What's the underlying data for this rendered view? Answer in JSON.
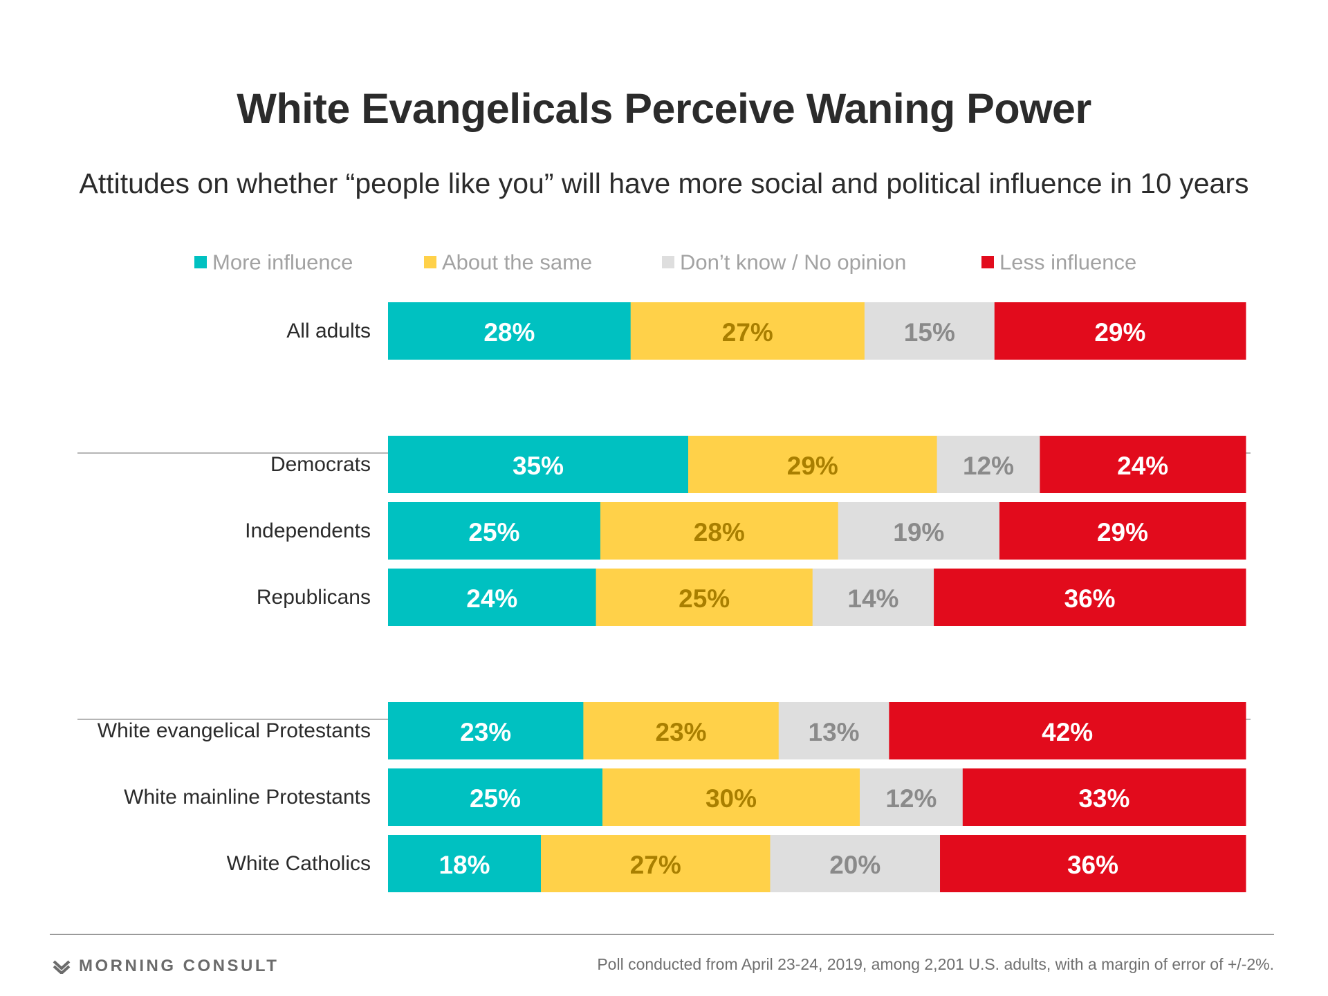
{
  "chart_data": {
    "type": "bar",
    "orientation": "horizontal",
    "stacked": true,
    "title": "White Evangelicals Perceive Waning Power",
    "subtitle": "Attitudes on whether “people like you” will have more social and political influence in 10 years",
    "legend_position": "top",
    "series": [
      {
        "name": "More influence",
        "color": "#00c1c1",
        "label_color": "#ffffff"
      },
      {
        "name": "About the same",
        "color": "#ffd149",
        "label_color": "#a97f00"
      },
      {
        "name": "Don’t know / No opinion",
        "color": "#dedede",
        "label_color": "#8a8a8a"
      },
      {
        "name": "Less influence",
        "color": "#e20b1c",
        "label_color": "#ffffff"
      }
    ],
    "groups": [
      [
        {
          "category": "All adults",
          "values": [
            28,
            27,
            15,
            29
          ],
          "labels": [
            "28%",
            "27%",
            "15%",
            "29%"
          ]
        }
      ],
      [
        {
          "category": "Democrats",
          "values": [
            35,
            29,
            12,
            24
          ],
          "labels": [
            "35%",
            "29%",
            "12%",
            "24%"
          ]
        },
        {
          "category": "Independents",
          "values": [
            25,
            28,
            19,
            29
          ],
          "labels": [
            "25%",
            "28%",
            "19%",
            "29%"
          ]
        },
        {
          "category": "Republicans",
          "values": [
            24,
            25,
            14,
            36
          ],
          "labels": [
            "24%",
            "25%",
            "14%",
            "36%"
          ]
        }
      ],
      [
        {
          "category": "White evangelical Protestants",
          "values": [
            23,
            23,
            13,
            42
          ],
          "labels": [
            "23%",
            "23%",
            "13%",
            "42%"
          ]
        },
        {
          "category": "White mainline Protestants",
          "values": [
            25,
            30,
            12,
            33
          ],
          "labels": [
            "25%",
            "30%",
            "12%",
            "33%"
          ]
        },
        {
          "category": "White Catholics",
          "values": [
            18,
            27,
            20,
            36
          ],
          "labels": [
            "18%",
            "27%",
            "20%",
            "36%"
          ]
        }
      ]
    ]
  },
  "footer": {
    "brand": "MORNING CONSULT",
    "brand_icon": "morning-consult-logo-icon",
    "note": "Poll conducted from April 23-24, 2019, among 2,201 U.S. adults, with a margin of error of +/-2%."
  }
}
